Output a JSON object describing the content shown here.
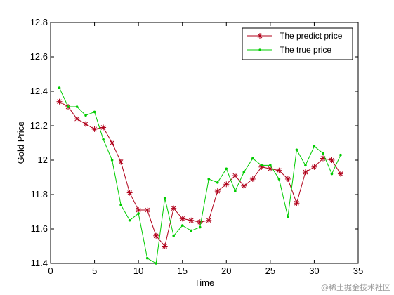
{
  "chart_data": {
    "type": "line",
    "title": "",
    "xlabel": "Time",
    "ylabel": "Gold Price",
    "xlim": [
      0,
      35
    ],
    "ylim": [
      11.4,
      12.8
    ],
    "xticks": [
      0,
      5,
      10,
      15,
      20,
      25,
      30,
      35
    ],
    "yticks": [
      11.4,
      11.6,
      11.8,
      12.0,
      12.2,
      12.4,
      12.6,
      12.8
    ],
    "xtick_labels": [
      "0",
      "5",
      "10",
      "15",
      "20",
      "25",
      "30",
      "35"
    ],
    "ytick_labels": [
      "11.4",
      "11.6",
      "11.8",
      "12",
      "12.2",
      "12.4",
      "12.6",
      "12.8"
    ],
    "x": [
      1,
      2,
      3,
      4,
      5,
      6,
      7,
      8,
      9,
      10,
      11,
      12,
      13,
      14,
      15,
      16,
      17,
      18,
      19,
      20,
      21,
      22,
      23,
      24,
      25,
      26,
      27,
      28,
      29,
      30,
      31,
      32,
      33
    ],
    "grid": false,
    "legend_position": "top-right",
    "series": [
      {
        "name": "The predict price",
        "color": "#b0001a",
        "marker": "asterisk",
        "values": [
          12.34,
          12.31,
          12.24,
          12.21,
          12.18,
          12.19,
          12.1,
          11.99,
          11.81,
          11.71,
          11.71,
          11.56,
          11.5,
          11.72,
          11.66,
          11.65,
          11.64,
          11.65,
          11.82,
          11.86,
          11.91,
          11.85,
          11.89,
          11.96,
          11.95,
          11.94,
          11.89,
          11.75,
          11.93,
          11.96,
          12.01,
          12.0,
          11.92
        ]
      },
      {
        "name": "The true price",
        "color": "#00cc00",
        "marker": "dot",
        "values": [
          12.42,
          12.31,
          12.31,
          12.26,
          12.28,
          12.12,
          12.0,
          11.74,
          11.65,
          11.69,
          11.43,
          11.4,
          11.78,
          11.56,
          11.62,
          11.59,
          11.61,
          11.89,
          11.87,
          11.95,
          11.82,
          11.93,
          12.01,
          11.97,
          11.97,
          11.89,
          11.67,
          12.06,
          11.97,
          12.08,
          12.04,
          11.92,
          12.03
        ]
      }
    ]
  },
  "watermark": "@稀土掘金技术社区"
}
